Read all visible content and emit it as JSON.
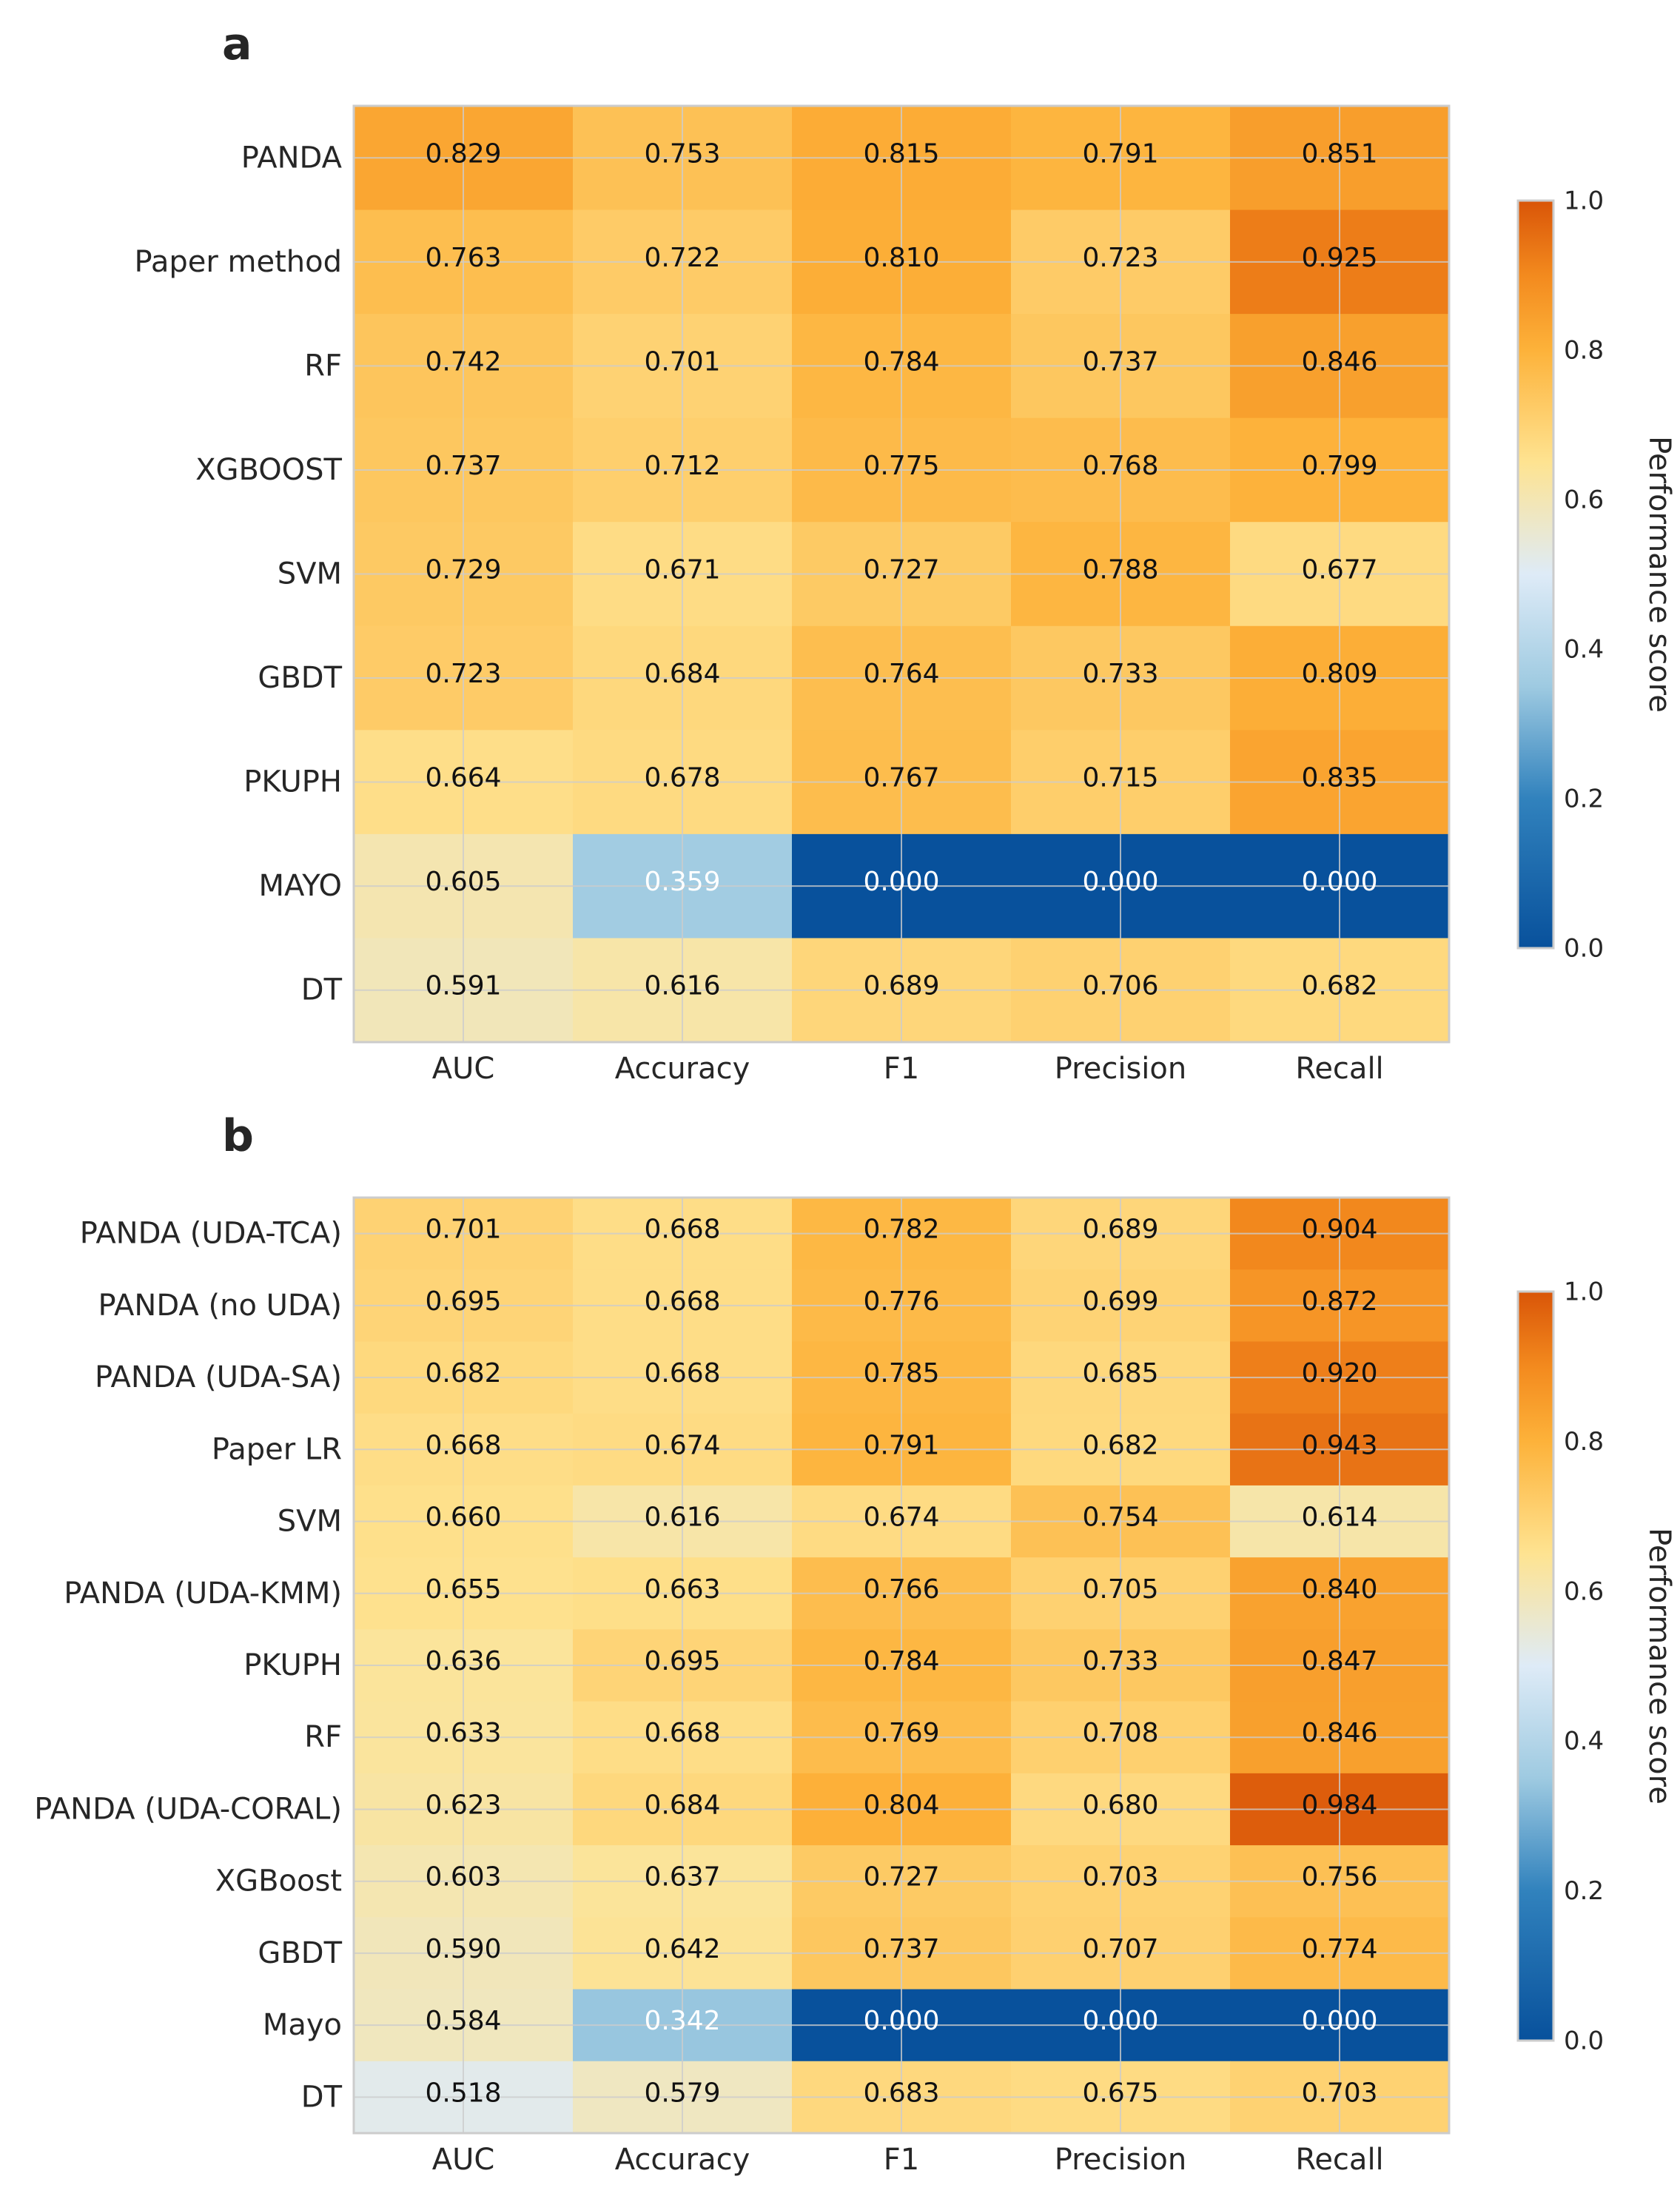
{
  "colorscale": {
    "stops": [
      {
        "v": 0.0,
        "c": "#08519c"
      },
      {
        "v": 0.2,
        "c": "#3182bd"
      },
      {
        "v": 0.35,
        "c": "#9ecae1"
      },
      {
        "v": 0.5,
        "c": "#deebf7"
      },
      {
        "v": 0.65,
        "c": "#fee391"
      },
      {
        "v": 0.8,
        "c": "#fdb23a"
      },
      {
        "v": 0.9,
        "c": "#f38a1e"
      },
      {
        "v": 1.0,
        "c": "#d95508"
      }
    ],
    "text_dark": "#111111",
    "text_light": "#ffffff",
    "grid_color": "#cccccc"
  },
  "chart_data": [
    {
      "type": "heatmap",
      "panel": "a",
      "columns": [
        "AUC",
        "Accuracy",
        "F1",
        "Precision",
        "Recall"
      ],
      "rows": [
        "PANDA",
        "Paper method",
        "RF",
        "XGBOOST",
        "SVM",
        "GBDT",
        "PKUPH",
        "MAYO",
        "DT"
      ],
      "values": [
        [
          0.829,
          0.753,
          0.815,
          0.791,
          0.851
        ],
        [
          0.763,
          0.722,
          0.81,
          0.723,
          0.925
        ],
        [
          0.742,
          0.701,
          0.784,
          0.737,
          0.846
        ],
        [
          0.737,
          0.712,
          0.775,
          0.768,
          0.799
        ],
        [
          0.729,
          0.671,
          0.727,
          0.788,
          0.677
        ],
        [
          0.723,
          0.684,
          0.764,
          0.733,
          0.809
        ],
        [
          0.664,
          0.678,
          0.767,
          0.715,
          0.835
        ],
        [
          0.605,
          0.359,
          0.0,
          0.0,
          0.0
        ],
        [
          0.591,
          0.616,
          0.689,
          0.706,
          0.682
        ]
      ],
      "labels": [
        [
          "0.829",
          "0.753",
          "0.815",
          "0.791",
          "0.851"
        ],
        [
          "0.763",
          "0.722",
          "0.810",
          "0.723",
          "0.925"
        ],
        [
          "0.742",
          "0.701",
          "0.784",
          "0.737",
          "0.846"
        ],
        [
          "0.737",
          "0.712",
          "0.775",
          "0.768",
          "0.799"
        ],
        [
          "0.729",
          "0.671",
          "0.727",
          "0.788",
          "0.677"
        ],
        [
          "0.723",
          "0.684",
          "0.764",
          "0.733",
          "0.809"
        ],
        [
          "0.664",
          "0.678",
          "0.767",
          "0.715",
          "0.835"
        ],
        [
          "0.605",
          "0.359",
          "0.000",
          "0.000",
          "0.000"
        ],
        [
          "0.591",
          "0.616",
          "0.689",
          "0.706",
          "0.682"
        ]
      ],
      "colorbar": {
        "label": "Performance score",
        "range": [
          0,
          1
        ],
        "ticks": [
          {
            "v": 0.0,
            "label": "0.0"
          },
          {
            "v": 0.2,
            "label": "0.2"
          },
          {
            "v": 0.4,
            "label": "0.4"
          },
          {
            "v": 0.6,
            "label": "0.6"
          },
          {
            "v": 0.8,
            "label": "0.8"
          },
          {
            "v": 1.0,
            "label": "1.0"
          }
        ]
      }
    },
    {
      "type": "heatmap",
      "panel": "b",
      "columns": [
        "AUC",
        "Accuracy",
        "F1",
        "Precision",
        "Recall"
      ],
      "rows": [
        "PANDA (UDA-TCA)",
        "PANDA (no UDA)",
        "PANDA (UDA-SA)",
        "Paper LR",
        "SVM",
        "PANDA (UDA-KMM)",
        "PKUPH",
        "RF",
        "PANDA (UDA-CORAL)",
        "XGBoost",
        "GBDT",
        "Mayo",
        "DT"
      ],
      "values": [
        [
          0.701,
          0.668,
          0.782,
          0.689,
          0.904
        ],
        [
          0.695,
          0.668,
          0.776,
          0.699,
          0.872
        ],
        [
          0.682,
          0.668,
          0.785,
          0.685,
          0.92
        ],
        [
          0.668,
          0.674,
          0.791,
          0.682,
          0.943
        ],
        [
          0.66,
          0.616,
          0.674,
          0.754,
          0.614
        ],
        [
          0.655,
          0.663,
          0.766,
          0.705,
          0.84
        ],
        [
          0.636,
          0.695,
          0.784,
          0.733,
          0.847
        ],
        [
          0.633,
          0.668,
          0.769,
          0.708,
          0.846
        ],
        [
          0.623,
          0.684,
          0.804,
          0.68,
          0.984
        ],
        [
          0.603,
          0.637,
          0.727,
          0.703,
          0.756
        ],
        [
          0.59,
          0.642,
          0.737,
          0.707,
          0.774
        ],
        [
          0.584,
          0.342,
          0.0,
          0.0,
          0.0
        ],
        [
          0.518,
          0.579,
          0.683,
          0.675,
          0.703
        ]
      ],
      "labels": [
        [
          "0.701",
          "0.668",
          "0.782",
          "0.689",
          "0.904"
        ],
        [
          "0.695",
          "0.668",
          "0.776",
          "0.699",
          "0.872"
        ],
        [
          "0.682",
          "0.668",
          "0.785",
          "0.685",
          "0.920"
        ],
        [
          "0.668",
          "0.674",
          "0.791",
          "0.682",
          "0.943"
        ],
        [
          "0.660",
          "0.616",
          "0.674",
          "0.754",
          "0.614"
        ],
        [
          "0.655",
          "0.663",
          "0.766",
          "0.705",
          "0.840"
        ],
        [
          "0.636",
          "0.695",
          "0.784",
          "0.733",
          "0.847"
        ],
        [
          "0.633",
          "0.668",
          "0.769",
          "0.708",
          "0.846"
        ],
        [
          "0.623",
          "0.684",
          "0.804",
          "0.680",
          "0.984"
        ],
        [
          "0.603",
          "0.637",
          "0.727",
          "0.703",
          "0.756"
        ],
        [
          "0.590",
          "0.642",
          "0.737",
          "0.707",
          "0.774"
        ],
        [
          "0.584",
          "0.342",
          "0.000",
          "0.000",
          "0.000"
        ],
        [
          "0.518",
          "0.579",
          "0.683",
          "0.675",
          "0.703"
        ]
      ],
      "colorbar": {
        "label": "Performance score",
        "range": [
          0,
          1
        ],
        "ticks": [
          {
            "v": 0.0,
            "label": "0.0"
          },
          {
            "v": 0.2,
            "label": "0.2"
          },
          {
            "v": 0.4,
            "label": "0.4"
          },
          {
            "v": 0.6,
            "label": "0.6"
          },
          {
            "v": 0.8,
            "label": "0.8"
          },
          {
            "v": 1.0,
            "label": "1.0"
          }
        ]
      }
    }
  ]
}
